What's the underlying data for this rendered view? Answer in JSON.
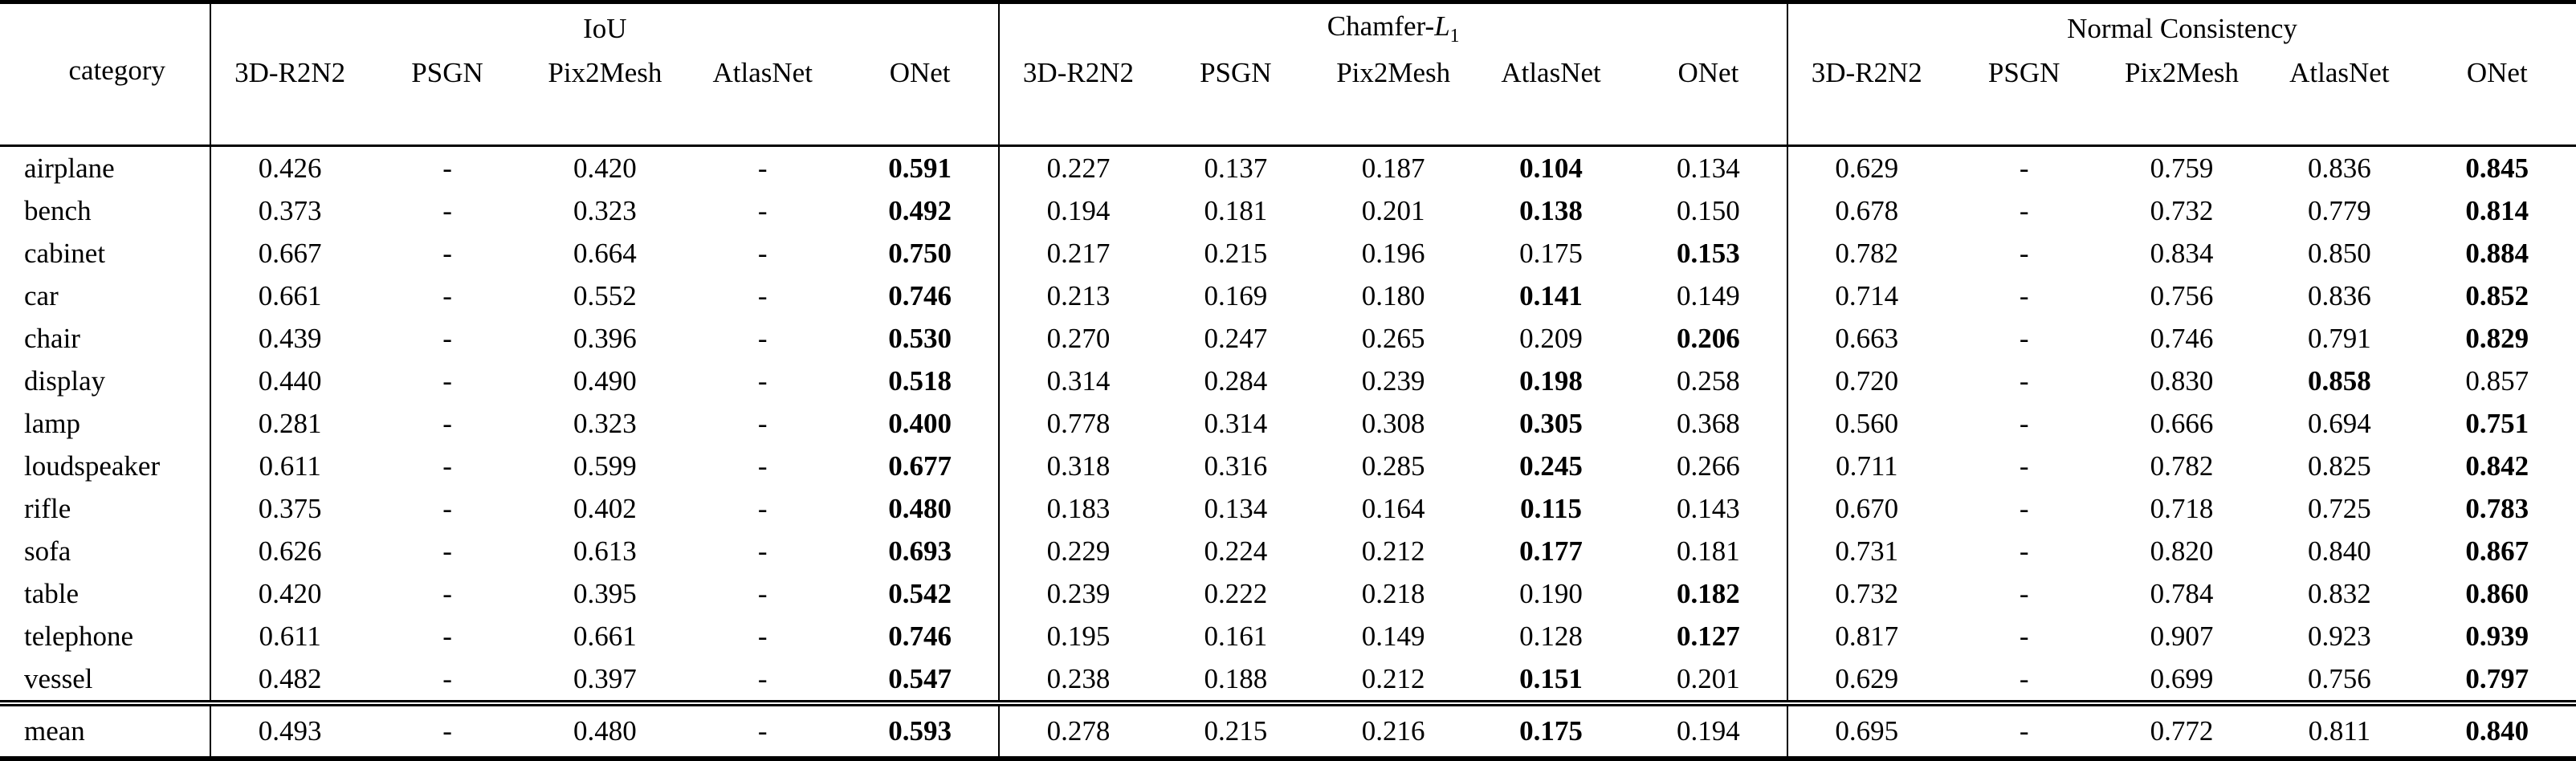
{
  "table": {
    "corner_label": "category",
    "groups": [
      {
        "label": "IoU"
      },
      {
        "label_prefix": "Chamfer-",
        "label_italic": "L",
        "label_sub": "1"
      },
      {
        "label": "Normal Consistency"
      }
    ],
    "methods": [
      "3D-R2N2",
      "PSGN",
      "Pix2Mesh",
      "AtlasNet",
      "ONet"
    ],
    "text_color": "#000000",
    "background_color": "#ffffff",
    "rows": [
      {
        "category": "airplane",
        "iou": [
          {
            "v": "0.426"
          },
          {
            "v": "-"
          },
          {
            "v": "0.420"
          },
          {
            "v": "-"
          },
          {
            "v": "0.591",
            "b": true
          }
        ],
        "chamfer": [
          {
            "v": "0.227"
          },
          {
            "v": "0.137"
          },
          {
            "v": "0.187"
          },
          {
            "v": "0.104",
            "b": true
          },
          {
            "v": "0.134"
          }
        ],
        "normal": [
          {
            "v": "0.629"
          },
          {
            "v": "-"
          },
          {
            "v": "0.759"
          },
          {
            "v": "0.836"
          },
          {
            "v": "0.845",
            "b": true
          }
        ]
      },
      {
        "category": "bench",
        "iou": [
          {
            "v": "0.373"
          },
          {
            "v": "-"
          },
          {
            "v": "0.323"
          },
          {
            "v": "-"
          },
          {
            "v": "0.492",
            "b": true
          }
        ],
        "chamfer": [
          {
            "v": "0.194"
          },
          {
            "v": "0.181"
          },
          {
            "v": "0.201"
          },
          {
            "v": "0.138",
            "b": true
          },
          {
            "v": "0.150"
          }
        ],
        "normal": [
          {
            "v": "0.678"
          },
          {
            "v": "-"
          },
          {
            "v": "0.732"
          },
          {
            "v": "0.779"
          },
          {
            "v": "0.814",
            "b": true
          }
        ]
      },
      {
        "category": "cabinet",
        "iou": [
          {
            "v": "0.667"
          },
          {
            "v": "-"
          },
          {
            "v": "0.664"
          },
          {
            "v": "-"
          },
          {
            "v": "0.750",
            "b": true
          }
        ],
        "chamfer": [
          {
            "v": "0.217"
          },
          {
            "v": "0.215"
          },
          {
            "v": "0.196"
          },
          {
            "v": "0.175"
          },
          {
            "v": "0.153",
            "b": true
          }
        ],
        "normal": [
          {
            "v": "0.782"
          },
          {
            "v": "-"
          },
          {
            "v": "0.834"
          },
          {
            "v": "0.850"
          },
          {
            "v": "0.884",
            "b": true
          }
        ]
      },
      {
        "category": "car",
        "iou": [
          {
            "v": "0.661"
          },
          {
            "v": "-"
          },
          {
            "v": "0.552"
          },
          {
            "v": "-"
          },
          {
            "v": "0.746",
            "b": true
          }
        ],
        "chamfer": [
          {
            "v": "0.213"
          },
          {
            "v": "0.169"
          },
          {
            "v": "0.180"
          },
          {
            "v": "0.141",
            "b": true
          },
          {
            "v": "0.149"
          }
        ],
        "normal": [
          {
            "v": "0.714"
          },
          {
            "v": "-"
          },
          {
            "v": "0.756"
          },
          {
            "v": "0.836"
          },
          {
            "v": "0.852",
            "b": true
          }
        ]
      },
      {
        "category": "chair",
        "iou": [
          {
            "v": "0.439"
          },
          {
            "v": "-"
          },
          {
            "v": "0.396"
          },
          {
            "v": "-"
          },
          {
            "v": "0.530",
            "b": true
          }
        ],
        "chamfer": [
          {
            "v": "0.270"
          },
          {
            "v": "0.247"
          },
          {
            "v": "0.265"
          },
          {
            "v": "0.209"
          },
          {
            "v": "0.206",
            "b": true
          }
        ],
        "normal": [
          {
            "v": "0.663"
          },
          {
            "v": "-"
          },
          {
            "v": "0.746"
          },
          {
            "v": "0.791"
          },
          {
            "v": "0.829",
            "b": true
          }
        ]
      },
      {
        "category": "display",
        "iou": [
          {
            "v": "0.440"
          },
          {
            "v": "-"
          },
          {
            "v": "0.490"
          },
          {
            "v": "-"
          },
          {
            "v": "0.518",
            "b": true
          }
        ],
        "chamfer": [
          {
            "v": "0.314"
          },
          {
            "v": "0.284"
          },
          {
            "v": "0.239"
          },
          {
            "v": "0.198",
            "b": true
          },
          {
            "v": "0.258"
          }
        ],
        "normal": [
          {
            "v": "0.720"
          },
          {
            "v": "-"
          },
          {
            "v": "0.830"
          },
          {
            "v": "0.858",
            "b": true
          },
          {
            "v": "0.857"
          }
        ]
      },
      {
        "category": "lamp",
        "iou": [
          {
            "v": "0.281"
          },
          {
            "v": "-"
          },
          {
            "v": "0.323"
          },
          {
            "v": "-"
          },
          {
            "v": "0.400",
            "b": true
          }
        ],
        "chamfer": [
          {
            "v": "0.778"
          },
          {
            "v": "0.314"
          },
          {
            "v": "0.308"
          },
          {
            "v": "0.305",
            "b": true
          },
          {
            "v": "0.368"
          }
        ],
        "normal": [
          {
            "v": "0.560"
          },
          {
            "v": "-"
          },
          {
            "v": "0.666"
          },
          {
            "v": "0.694"
          },
          {
            "v": "0.751",
            "b": true
          }
        ]
      },
      {
        "category": "loudspeaker",
        "iou": [
          {
            "v": "0.611"
          },
          {
            "v": "-"
          },
          {
            "v": "0.599"
          },
          {
            "v": "-"
          },
          {
            "v": "0.677",
            "b": true
          }
        ],
        "chamfer": [
          {
            "v": "0.318"
          },
          {
            "v": "0.316"
          },
          {
            "v": "0.285"
          },
          {
            "v": "0.245",
            "b": true
          },
          {
            "v": "0.266"
          }
        ],
        "normal": [
          {
            "v": "0.711"
          },
          {
            "v": "-"
          },
          {
            "v": "0.782"
          },
          {
            "v": "0.825"
          },
          {
            "v": "0.842",
            "b": true
          }
        ]
      },
      {
        "category": "rifle",
        "iou": [
          {
            "v": "0.375"
          },
          {
            "v": "-"
          },
          {
            "v": "0.402"
          },
          {
            "v": "-"
          },
          {
            "v": "0.480",
            "b": true
          }
        ],
        "chamfer": [
          {
            "v": "0.183"
          },
          {
            "v": "0.134"
          },
          {
            "v": "0.164"
          },
          {
            "v": "0.115",
            "b": true
          },
          {
            "v": "0.143"
          }
        ],
        "normal": [
          {
            "v": "0.670"
          },
          {
            "v": "-"
          },
          {
            "v": "0.718"
          },
          {
            "v": "0.725"
          },
          {
            "v": "0.783",
            "b": true
          }
        ]
      },
      {
        "category": "sofa",
        "iou": [
          {
            "v": "0.626"
          },
          {
            "v": "-"
          },
          {
            "v": "0.613"
          },
          {
            "v": "-"
          },
          {
            "v": "0.693",
            "b": true
          }
        ],
        "chamfer": [
          {
            "v": "0.229"
          },
          {
            "v": "0.224"
          },
          {
            "v": "0.212"
          },
          {
            "v": "0.177",
            "b": true
          },
          {
            "v": "0.181"
          }
        ],
        "normal": [
          {
            "v": "0.731"
          },
          {
            "v": "-"
          },
          {
            "v": "0.820"
          },
          {
            "v": "0.840"
          },
          {
            "v": "0.867",
            "b": true
          }
        ]
      },
      {
        "category": "table",
        "iou": [
          {
            "v": "0.420"
          },
          {
            "v": "-"
          },
          {
            "v": "0.395"
          },
          {
            "v": "-"
          },
          {
            "v": "0.542",
            "b": true
          }
        ],
        "chamfer": [
          {
            "v": "0.239"
          },
          {
            "v": "0.222"
          },
          {
            "v": "0.218"
          },
          {
            "v": "0.190"
          },
          {
            "v": "0.182",
            "b": true
          }
        ],
        "normal": [
          {
            "v": "0.732"
          },
          {
            "v": "-"
          },
          {
            "v": "0.784"
          },
          {
            "v": "0.832"
          },
          {
            "v": "0.860",
            "b": true
          }
        ]
      },
      {
        "category": "telephone",
        "iou": [
          {
            "v": "0.611"
          },
          {
            "v": "-"
          },
          {
            "v": "0.661"
          },
          {
            "v": "-"
          },
          {
            "v": "0.746",
            "b": true
          }
        ],
        "chamfer": [
          {
            "v": "0.195"
          },
          {
            "v": "0.161"
          },
          {
            "v": "0.149"
          },
          {
            "v": "0.128"
          },
          {
            "v": "0.127",
            "b": true
          }
        ],
        "normal": [
          {
            "v": "0.817"
          },
          {
            "v": "-"
          },
          {
            "v": "0.907"
          },
          {
            "v": "0.923"
          },
          {
            "v": "0.939",
            "b": true
          }
        ]
      },
      {
        "category": "vessel",
        "iou": [
          {
            "v": "0.482"
          },
          {
            "v": "-"
          },
          {
            "v": "0.397"
          },
          {
            "v": "-"
          },
          {
            "v": "0.547",
            "b": true
          }
        ],
        "chamfer": [
          {
            "v": "0.238"
          },
          {
            "v": "0.188"
          },
          {
            "v": "0.212"
          },
          {
            "v": "0.151",
            "b": true
          },
          {
            "v": "0.201"
          }
        ],
        "normal": [
          {
            "v": "0.629"
          },
          {
            "v": "-"
          },
          {
            "v": "0.699"
          },
          {
            "v": "0.756"
          },
          {
            "v": "0.797",
            "b": true
          }
        ]
      }
    ],
    "mean_row": {
      "category": "mean",
      "iou": [
        {
          "v": "0.493"
        },
        {
          "v": "-"
        },
        {
          "v": "0.480"
        },
        {
          "v": "-"
        },
        {
          "v": "0.593",
          "b": true
        }
      ],
      "chamfer": [
        {
          "v": "0.278"
        },
        {
          "v": "0.215"
        },
        {
          "v": "0.216"
        },
        {
          "v": "0.175",
          "b": true
        },
        {
          "v": "0.194"
        }
      ],
      "normal": [
        {
          "v": "0.695"
        },
        {
          "v": "-"
        },
        {
          "v": "0.772"
        },
        {
          "v": "0.811"
        },
        {
          "v": "0.840",
          "b": true
        }
      ]
    }
  }
}
